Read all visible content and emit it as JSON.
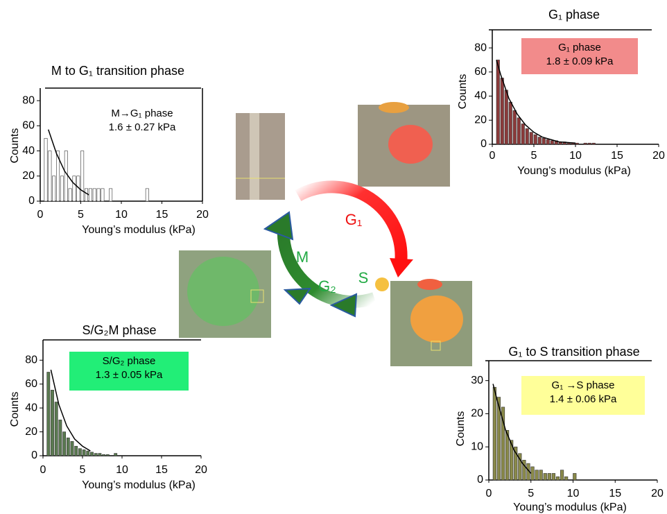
{
  "chart_data": [
    {
      "type": "histogram",
      "title": "M to G₁  transition phase",
      "x_label": "Young’s modulus  (kPa)",
      "y_label": "Counts",
      "annotation": [
        "M→G₁ phase",
        "1.6 ± 0.27 kPa"
      ],
      "color": "#ffffff",
      "bins": [
        0.5,
        1,
        1.5,
        2,
        2.5,
        3,
        3.5,
        4,
        4.5,
        5,
        5.5,
        6,
        6.5,
        7,
        7.5,
        8,
        8.5,
        9,
        9.5,
        10,
        10.5,
        11,
        11.5,
        12,
        12.5,
        13,
        13.5
      ],
      "counts": [
        50,
        40,
        20,
        40,
        20,
        40,
        10,
        20,
        20,
        40,
        10,
        10,
        10,
        10,
        10,
        0,
        10,
        0,
        0,
        0,
        0,
        0,
        0,
        0,
        0,
        10
      ],
      "fit": {
        "x": [
          1,
          2,
          3,
          4,
          5,
          6
        ],
        "values": [
          57,
          38,
          24,
          15,
          9,
          5
        ]
      },
      "xlim": [
        0,
        20
      ],
      "xticks": [
        0,
        5,
        10,
        15,
        20
      ],
      "ylim": [
        0,
        90
      ],
      "yticks": [
        0,
        20,
        40,
        60,
        80
      ]
    },
    {
      "type": "histogram",
      "title": "G₁ phase",
      "x_label": "Young’s modulus  (kPa)",
      "y_label": "Counts",
      "annotation": [
        "G₁ phase",
        "1.8 ± 0.09 kPa"
      ],
      "annotation_color": "#f28b8b",
      "color": "#8b3a3a",
      "bins": [
        0.5,
        1,
        1.5,
        2,
        2.5,
        3,
        3.5,
        4,
        4.5,
        5,
        5.5,
        6,
        6.5,
        7,
        7.5,
        8,
        8.5,
        9,
        9.5,
        10,
        10.5,
        11,
        11.5,
        12,
        12.5
      ],
      "counts": [
        70,
        55,
        45,
        35,
        28,
        22,
        17,
        13,
        10,
        8,
        6,
        5,
        4,
        3,
        3,
        2,
        2,
        1,
        1,
        1,
        0,
        1,
        1,
        1
      ],
      "fit": {
        "x": [
          0.5,
          1,
          2,
          3,
          4,
          5,
          6,
          8,
          10
        ],
        "values": [
          70,
          58,
          38,
          25,
          16,
          10,
          6,
          2,
          1
        ]
      },
      "xlim": [
        0,
        20
      ],
      "xticks": [
        0,
        5,
        10,
        15,
        20
      ],
      "ylim": [
        0,
        95
      ],
      "yticks": [
        0,
        20,
        40,
        60,
        80
      ]
    },
    {
      "type": "histogram",
      "title": "S/G₂M phase",
      "x_label": "Young’s modulus  (kPa)",
      "y_label": "Counts",
      "annotation": [
        "S/G₂ phase",
        "1.3 ± 0.05 kPa"
      ],
      "annotation_color": "#22ee77",
      "color": "#5a7a50",
      "bins": [
        0.5,
        1,
        1.5,
        2,
        2.5,
        3,
        3.5,
        4,
        4.5,
        5,
        5.5,
        6,
        6.5,
        7,
        7.5,
        8,
        8.5,
        9,
        9.5
      ],
      "counts": [
        70,
        55,
        45,
        30,
        20,
        15,
        12,
        8,
        6,
        5,
        4,
        3,
        2,
        2,
        1,
        1,
        0,
        2
      ],
      "fit": {
        "x": [
          1,
          2,
          3,
          4,
          5,
          6
        ],
        "values": [
          72,
          43,
          25,
          14,
          8,
          4
        ]
      },
      "xlim": [
        0,
        20
      ],
      "xticks": [
        0,
        5,
        10,
        15,
        20
      ],
      "ylim": [
        0,
        97
      ],
      "yticks": [
        0,
        20,
        40,
        60,
        80
      ]
    },
    {
      "type": "histogram",
      "title": "G₁ to S transition phase",
      "x_label": "Young’s modulus  (kPa)",
      "y_label": "Counts",
      "annotation": [
        "G₁ →S phase",
        "1.4 ± 0.06 kPa"
      ],
      "annotation_color": "#ffff99",
      "color": "#8a8a4a",
      "bins": [
        0.5,
        1,
        1.5,
        2,
        2.5,
        3,
        3.5,
        4,
        4.5,
        5,
        5.5,
        6,
        6.5,
        7,
        7.5,
        8,
        8.5,
        9,
        9.5,
        10,
        10.5
      ],
      "counts": [
        28,
        25,
        22,
        15,
        12,
        10,
        8,
        6,
        5,
        4,
        3,
        3,
        2,
        2,
        2,
        1,
        3,
        1,
        0,
        2
      ],
      "fit": {
        "x": [
          0.5,
          1,
          2,
          3,
          4,
          5
        ],
        "values": [
          29,
          24,
          15,
          9,
          5,
          2
        ]
      },
      "xlim": [
        0,
        20
      ],
      "xticks": [
        0,
        5,
        10,
        15,
        20
      ],
      "ylim": [
        0,
        36
      ],
      "yticks": [
        0,
        10,
        20,
        30
      ]
    }
  ],
  "cycle": {
    "g1": "G₁",
    "s": "S",
    "g2": "G₂",
    "m": "M"
  }
}
